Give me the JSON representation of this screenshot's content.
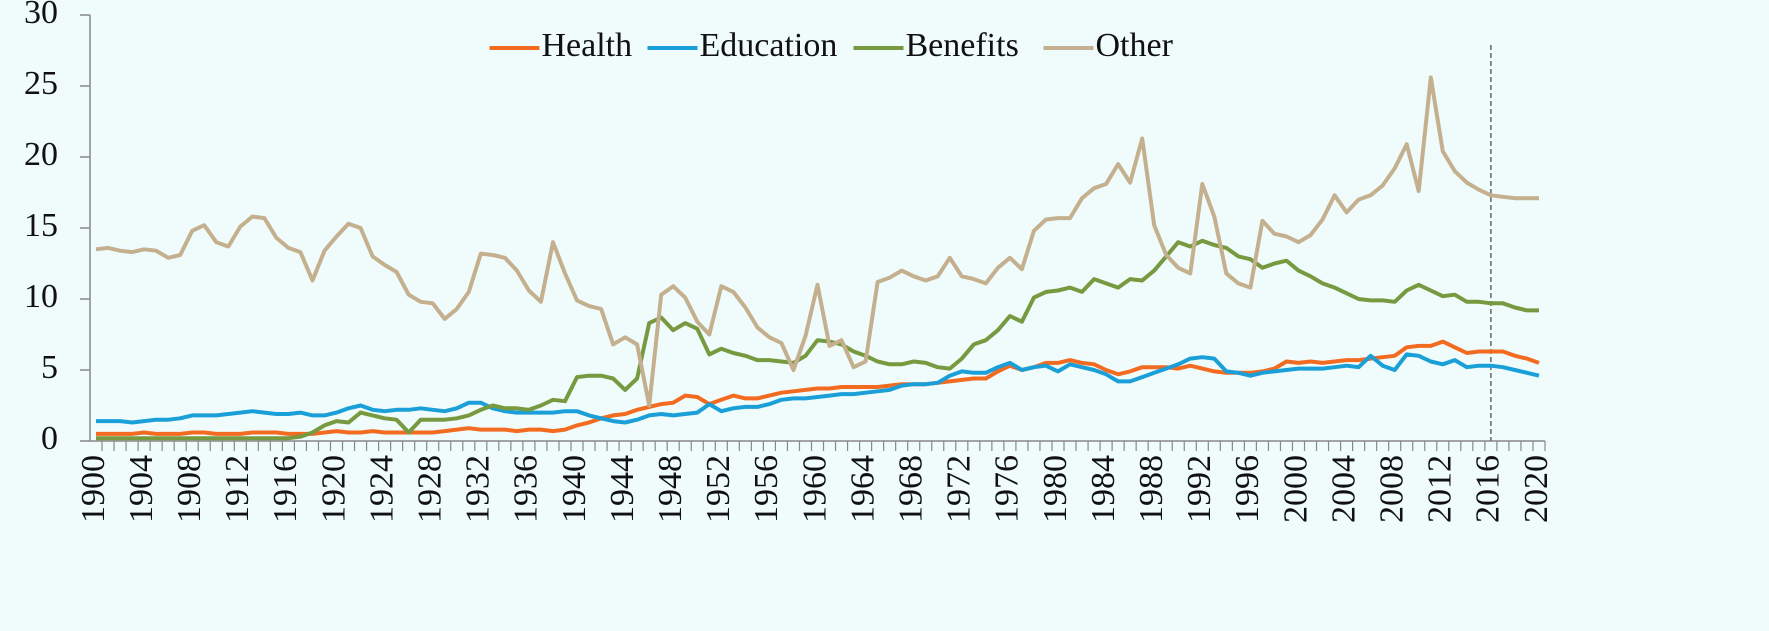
{
  "chart_data": {
    "type": "line",
    "x": [
      1900,
      1901,
      1902,
      1903,
      1904,
      1905,
      1906,
      1907,
      1908,
      1909,
      1910,
      1911,
      1912,
      1913,
      1914,
      1915,
      1916,
      1917,
      1918,
      1919,
      1920,
      1921,
      1922,
      1923,
      1924,
      1925,
      1926,
      1927,
      1928,
      1929,
      1930,
      1931,
      1932,
      1933,
      1934,
      1935,
      1936,
      1937,
      1938,
      1939,
      1940,
      1941,
      1942,
      1943,
      1944,
      1945,
      1946,
      1947,
      1948,
      1949,
      1950,
      1951,
      1952,
      1953,
      1954,
      1955,
      1956,
      1957,
      1958,
      1959,
      1960,
      1961,
      1962,
      1963,
      1964,
      1965,
      1966,
      1967,
      1968,
      1969,
      1970,
      1971,
      1972,
      1973,
      1974,
      1975,
      1976,
      1977,
      1978,
      1979,
      1980,
      1981,
      1982,
      1983,
      1984,
      1985,
      1986,
      1987,
      1988,
      1989,
      1990,
      1991,
      1992,
      1993,
      1994,
      1995,
      1996,
      1997,
      1998,
      1999,
      2000,
      2001,
      2002,
      2003,
      2004,
      2005,
      2006,
      2007,
      2008,
      2009,
      2010,
      2011,
      2012,
      2013,
      2014,
      2015,
      2016,
      2017,
      2018,
      2019,
      2020
    ],
    "series": [
      {
        "name": "Health",
        "color": "#f26b21",
        "values": [
          0.5,
          0.5,
          0.5,
          0.5,
          0.6,
          0.5,
          0.5,
          0.5,
          0.6,
          0.6,
          0.5,
          0.5,
          0.5,
          0.6,
          0.6,
          0.6,
          0.5,
          0.5,
          0.5,
          0.6,
          0.7,
          0.6,
          0.6,
          0.7,
          0.6,
          0.6,
          0.6,
          0.6,
          0.6,
          0.7,
          0.8,
          0.9,
          0.8,
          0.8,
          0.8,
          0.7,
          0.8,
          0.8,
          0.7,
          0.8,
          1.1,
          1.3,
          1.6,
          1.8,
          1.9,
          2.2,
          2.4,
          2.6,
          2.7,
          3.2,
          3.1,
          2.6,
          2.9,
          3.2,
          3.0,
          3.0,
          3.2,
          3.4,
          3.5,
          3.6,
          3.7,
          3.7,
          3.8,
          3.8,
          3.8,
          3.8,
          3.9,
          4.0,
          4.0,
          4.0,
          4.1,
          4.2,
          4.3,
          4.4,
          4.4,
          4.9,
          5.3,
          5.0,
          5.2,
          5.5,
          5.5,
          5.7,
          5.5,
          5.4,
          5.0,
          4.7,
          4.9,
          5.2,
          5.2,
          5.2,
          5.1,
          5.3,
          5.1,
          4.9,
          4.8,
          4.8,
          4.8,
          4.9,
          5.1,
          5.6,
          5.5,
          5.6,
          5.5,
          5.6,
          5.7,
          5.7,
          5.8,
          5.9,
          6.0,
          6.6,
          6.7,
          6.7,
          7.0,
          6.6,
          6.2,
          6.3,
          6.3,
          6.3,
          6.0,
          5.8,
          5.5
        ]
      },
      {
        "name": "Education",
        "color": "#1a9fd8",
        "values": [
          1.4,
          1.4,
          1.4,
          1.3,
          1.4,
          1.5,
          1.5,
          1.6,
          1.8,
          1.8,
          1.8,
          1.9,
          2.0,
          2.1,
          2.0,
          1.9,
          1.9,
          2.0,
          1.8,
          1.8,
          2.0,
          2.3,
          2.5,
          2.2,
          2.1,
          2.2,
          2.2,
          2.3,
          2.2,
          2.1,
          2.3,
          2.7,
          2.7,
          2.3,
          2.1,
          2.0,
          2.0,
          2.0,
          2.0,
          2.1,
          2.1,
          1.8,
          1.6,
          1.4,
          1.3,
          1.5,
          1.8,
          1.9,
          1.8,
          1.9,
          2.0,
          2.6,
          2.1,
          2.3,
          2.4,
          2.4,
          2.6,
          2.9,
          3.0,
          3.0,
          3.1,
          3.2,
          3.3,
          3.3,
          3.4,
          3.5,
          3.6,
          3.9,
          4.0,
          4.0,
          4.1,
          4.6,
          4.9,
          4.8,
          4.8,
          5.2,
          5.5,
          5.0,
          5.2,
          5.3,
          4.9,
          5.4,
          5.2,
          5.0,
          4.7,
          4.2,
          4.2,
          4.5,
          4.8,
          5.1,
          5.4,
          5.8,
          5.9,
          5.8,
          4.9,
          4.8,
          4.6,
          4.8,
          4.9,
          5.0,
          5.1,
          5.1,
          5.1,
          5.2,
          5.3,
          5.2,
          6.0,
          5.3,
          5.0,
          6.1,
          6.0,
          5.6,
          5.4,
          5.7,
          5.2,
          5.3,
          5.3,
          5.2,
          5.0,
          4.8,
          4.6
        ]
      },
      {
        "name": "Benefits",
        "color": "#77993f",
        "values": [
          0.2,
          0.2,
          0.2,
          0.2,
          0.2,
          0.2,
          0.2,
          0.2,
          0.2,
          0.2,
          0.2,
          0.2,
          0.2,
          0.2,
          0.2,
          0.2,
          0.2,
          0.3,
          0.6,
          1.1,
          1.4,
          1.3,
          2.0,
          1.8,
          1.6,
          1.5,
          0.6,
          1.5,
          1.5,
          1.5,
          1.6,
          1.8,
          2.2,
          2.5,
          2.3,
          2.3,
          2.2,
          2.5,
          2.9,
          2.8,
          4.5,
          4.6,
          4.6,
          4.4,
          3.6,
          4.4,
          8.3,
          8.7,
          7.8,
          8.3,
          7.9,
          6.1,
          6.5,
          6.2,
          6.0,
          5.7,
          5.7,
          5.6,
          5.5,
          6.0,
          7.1,
          7.0,
          6.8,
          6.3,
          6.0,
          5.6,
          5.4,
          5.4,
          5.6,
          5.5,
          5.2,
          5.1,
          5.8,
          6.8,
          7.1,
          7.8,
          8.8,
          8.4,
          10.1,
          10.5,
          10.6,
          10.8,
          10.5,
          11.4,
          11.1,
          10.8,
          11.4,
          11.3,
          12.0,
          13.0,
          14.0,
          13.7,
          14.1,
          13.8,
          13.6,
          13.0,
          12.8,
          12.2,
          12.5,
          12.7,
          12.0,
          11.6,
          11.1,
          10.8,
          10.4,
          10.0,
          9.9,
          9.9,
          9.8,
          10.6,
          11.0,
          10.6,
          10.2,
          10.3,
          9.8,
          9.8,
          9.7,
          9.7,
          9.4,
          9.2,
          9.2
        ]
      },
      {
        "name": "Other",
        "color": "#c4b08e",
        "values": [
          13.5,
          13.6,
          13.4,
          13.3,
          13.5,
          13.4,
          12.9,
          13.1,
          14.8,
          15.2,
          14.0,
          13.7,
          15.1,
          15.8,
          15.7,
          14.3,
          13.6,
          13.3,
          11.3,
          13.4,
          14.4,
          15.3,
          15.0,
          13.0,
          12.4,
          11.9,
          10.3,
          9.8,
          9.7,
          8.6,
          9.3,
          10.5,
          13.2,
          13.1,
          12.9,
          12.0,
          10.6,
          9.8,
          14.0,
          11.8,
          9.9,
          9.5,
          9.3,
          6.8,
          7.3,
          6.8,
          2.5,
          10.3,
          10.9,
          10.1,
          8.4,
          7.5,
          10.9,
          10.5,
          9.4,
          8.0,
          7.3,
          6.9,
          5.0,
          7.4,
          11.0,
          6.7,
          7.1,
          5.2,
          5.6,
          11.2,
          11.5,
          12.0,
          11.6,
          11.3,
          11.6,
          12.9,
          11.6,
          11.4,
          11.1,
          12.2,
          12.9,
          12.1,
          14.8,
          15.6,
          15.7,
          15.7,
          17.1,
          17.8,
          18.1,
          19.5,
          18.2,
          21.3,
          15.2,
          13.1,
          12.2,
          11.8,
          18.1,
          15.8,
          11.8,
          11.1,
          10.8,
          15.5,
          14.6,
          14.4,
          14.0,
          14.5,
          15.6,
          17.3,
          16.1,
          17.0,
          17.3,
          18.0,
          19.2,
          20.9,
          17.6,
          25.6,
          20.4,
          19.0,
          18.2,
          17.7,
          17.3,
          17.2,
          17.1,
          17.1,
          17.1
        ]
      }
    ],
    "ylim": [
      0,
      30
    ],
    "yticks": [
      0,
      5,
      10,
      15,
      20,
      25,
      30
    ],
    "xticks": [
      1900,
      1904,
      1908,
      1912,
      1916,
      1920,
      1924,
      1928,
      1932,
      1936,
      1940,
      1944,
      1948,
      1952,
      1956,
      1960,
      1964,
      1968,
      1972,
      1976,
      1980,
      1984,
      1988,
      1992,
      1996,
      2000,
      2004,
      2008,
      2012,
      2016,
      2020
    ],
    "vline": 2016,
    "grid": false,
    "legend": "top"
  }
}
